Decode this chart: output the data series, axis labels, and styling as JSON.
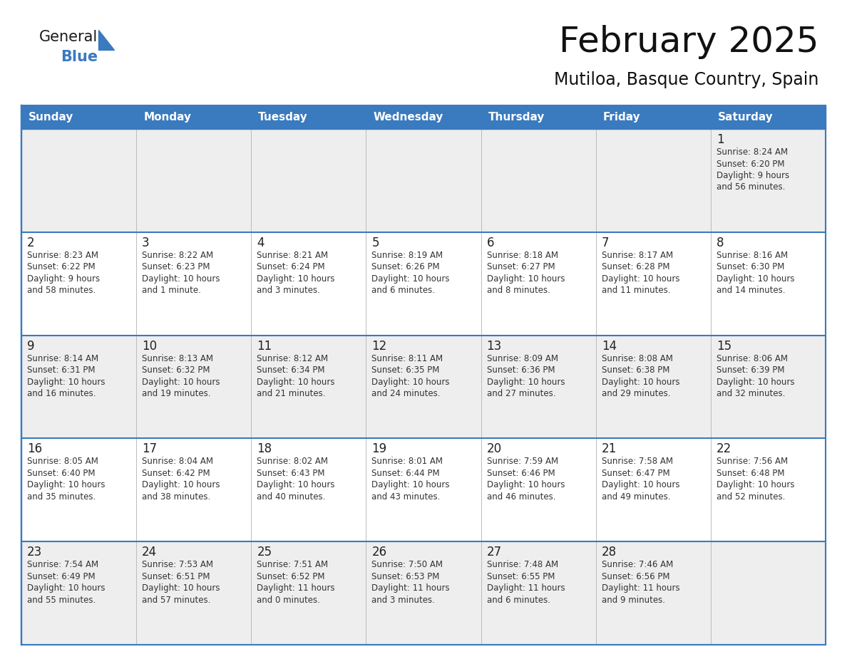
{
  "title": "February 2025",
  "subtitle": "Mutiloa, Basque Country, Spain",
  "header_bg": "#3a7abf",
  "header_text": "#ffffff",
  "days_of_week": [
    "Sunday",
    "Monday",
    "Tuesday",
    "Wednesday",
    "Thursday",
    "Friday",
    "Saturday"
  ],
  "row_bg_even": "#eeeeee",
  "row_bg_odd": "#ffffff",
  "cell_border_color": "#3a7abf",
  "day_number_color": "#222222",
  "info_text_color": "#333333",
  "calendar_data": [
    [
      {
        "day": "",
        "info": ""
      },
      {
        "day": "",
        "info": ""
      },
      {
        "day": "",
        "info": ""
      },
      {
        "day": "",
        "info": ""
      },
      {
        "day": "",
        "info": ""
      },
      {
        "day": "",
        "info": ""
      },
      {
        "day": "1",
        "info": "Sunrise: 8:24 AM\nSunset: 6:20 PM\nDaylight: 9 hours\nand 56 minutes."
      }
    ],
    [
      {
        "day": "2",
        "info": "Sunrise: 8:23 AM\nSunset: 6:22 PM\nDaylight: 9 hours\nand 58 minutes."
      },
      {
        "day": "3",
        "info": "Sunrise: 8:22 AM\nSunset: 6:23 PM\nDaylight: 10 hours\nand 1 minute."
      },
      {
        "day": "4",
        "info": "Sunrise: 8:21 AM\nSunset: 6:24 PM\nDaylight: 10 hours\nand 3 minutes."
      },
      {
        "day": "5",
        "info": "Sunrise: 8:19 AM\nSunset: 6:26 PM\nDaylight: 10 hours\nand 6 minutes."
      },
      {
        "day": "6",
        "info": "Sunrise: 8:18 AM\nSunset: 6:27 PM\nDaylight: 10 hours\nand 8 minutes."
      },
      {
        "day": "7",
        "info": "Sunrise: 8:17 AM\nSunset: 6:28 PM\nDaylight: 10 hours\nand 11 minutes."
      },
      {
        "day": "8",
        "info": "Sunrise: 8:16 AM\nSunset: 6:30 PM\nDaylight: 10 hours\nand 14 minutes."
      }
    ],
    [
      {
        "day": "9",
        "info": "Sunrise: 8:14 AM\nSunset: 6:31 PM\nDaylight: 10 hours\nand 16 minutes."
      },
      {
        "day": "10",
        "info": "Sunrise: 8:13 AM\nSunset: 6:32 PM\nDaylight: 10 hours\nand 19 minutes."
      },
      {
        "day": "11",
        "info": "Sunrise: 8:12 AM\nSunset: 6:34 PM\nDaylight: 10 hours\nand 21 minutes."
      },
      {
        "day": "12",
        "info": "Sunrise: 8:11 AM\nSunset: 6:35 PM\nDaylight: 10 hours\nand 24 minutes."
      },
      {
        "day": "13",
        "info": "Sunrise: 8:09 AM\nSunset: 6:36 PM\nDaylight: 10 hours\nand 27 minutes."
      },
      {
        "day": "14",
        "info": "Sunrise: 8:08 AM\nSunset: 6:38 PM\nDaylight: 10 hours\nand 29 minutes."
      },
      {
        "day": "15",
        "info": "Sunrise: 8:06 AM\nSunset: 6:39 PM\nDaylight: 10 hours\nand 32 minutes."
      }
    ],
    [
      {
        "day": "16",
        "info": "Sunrise: 8:05 AM\nSunset: 6:40 PM\nDaylight: 10 hours\nand 35 minutes."
      },
      {
        "day": "17",
        "info": "Sunrise: 8:04 AM\nSunset: 6:42 PM\nDaylight: 10 hours\nand 38 minutes."
      },
      {
        "day": "18",
        "info": "Sunrise: 8:02 AM\nSunset: 6:43 PM\nDaylight: 10 hours\nand 40 minutes."
      },
      {
        "day": "19",
        "info": "Sunrise: 8:01 AM\nSunset: 6:44 PM\nDaylight: 10 hours\nand 43 minutes."
      },
      {
        "day": "20",
        "info": "Sunrise: 7:59 AM\nSunset: 6:46 PM\nDaylight: 10 hours\nand 46 minutes."
      },
      {
        "day": "21",
        "info": "Sunrise: 7:58 AM\nSunset: 6:47 PM\nDaylight: 10 hours\nand 49 minutes."
      },
      {
        "day": "22",
        "info": "Sunrise: 7:56 AM\nSunset: 6:48 PM\nDaylight: 10 hours\nand 52 minutes."
      }
    ],
    [
      {
        "day": "23",
        "info": "Sunrise: 7:54 AM\nSunset: 6:49 PM\nDaylight: 10 hours\nand 55 minutes."
      },
      {
        "day": "24",
        "info": "Sunrise: 7:53 AM\nSunset: 6:51 PM\nDaylight: 10 hours\nand 57 minutes."
      },
      {
        "day": "25",
        "info": "Sunrise: 7:51 AM\nSunset: 6:52 PM\nDaylight: 11 hours\nand 0 minutes."
      },
      {
        "day": "26",
        "info": "Sunrise: 7:50 AM\nSunset: 6:53 PM\nDaylight: 11 hours\nand 3 minutes."
      },
      {
        "day": "27",
        "info": "Sunrise: 7:48 AM\nSunset: 6:55 PM\nDaylight: 11 hours\nand 6 minutes."
      },
      {
        "day": "28",
        "info": "Sunrise: 7:46 AM\nSunset: 6:56 PM\nDaylight: 11 hours\nand 9 minutes."
      },
      {
        "day": "",
        "info": ""
      }
    ]
  ],
  "logo_text_general": "General",
  "logo_text_blue": "Blue",
  "logo_color_general": "#1a1a1a",
  "logo_color_blue": "#3a7abf",
  "logo_triangle_color": "#3a7abf",
  "fig_width": 11.88,
  "fig_height": 9.18,
  "dpi": 100
}
